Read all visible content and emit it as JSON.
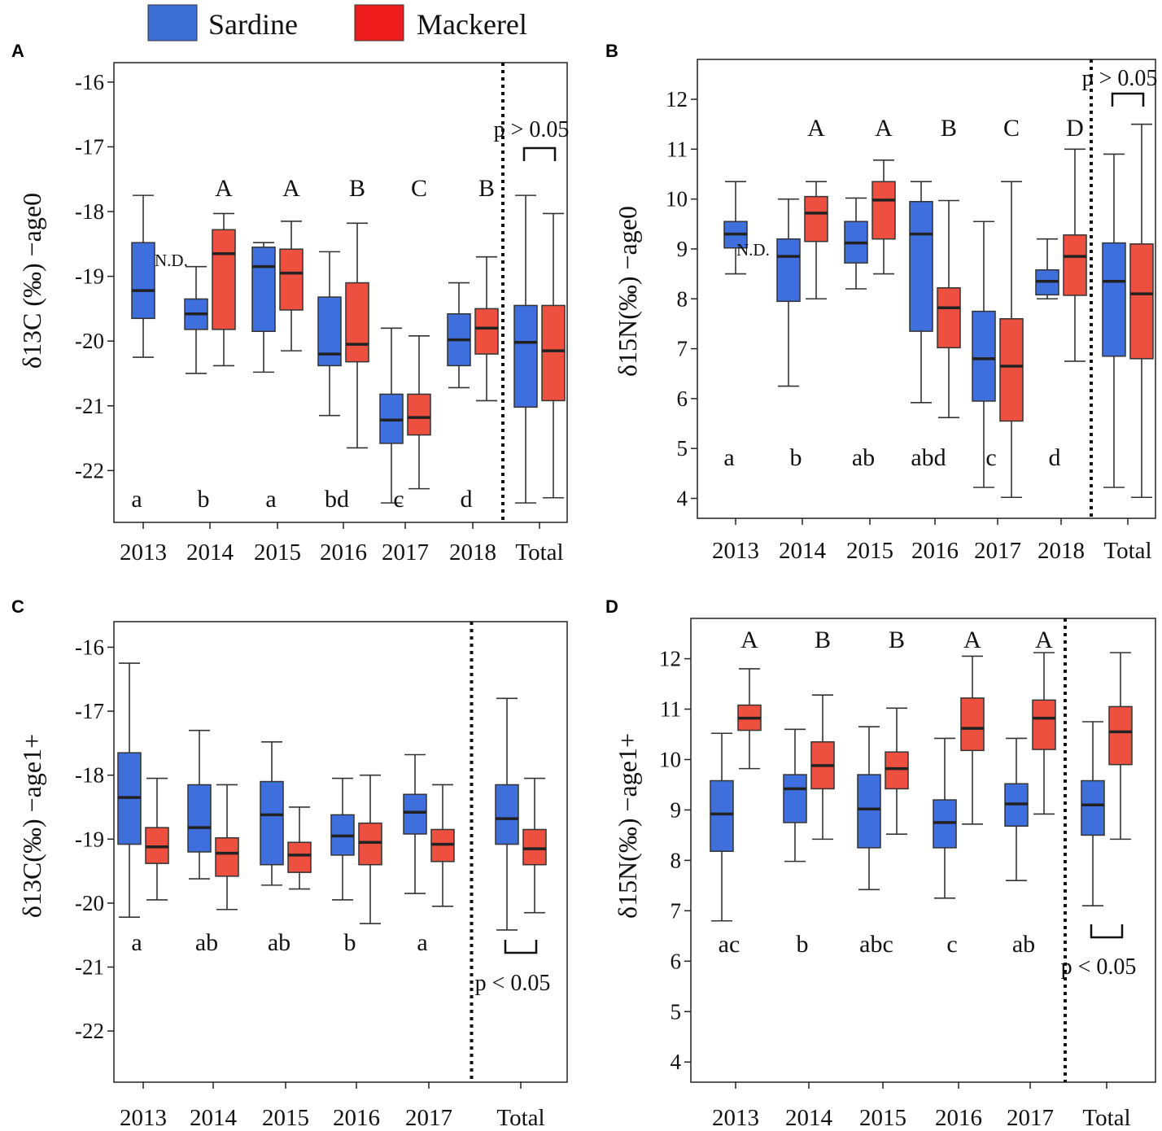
{
  "legend": [
    {
      "label": "Sardine",
      "color": "#3d6fd6"
    },
    {
      "label": "Mackerel",
      "color": "#ee1c1c"
    }
  ],
  "colors": {
    "sardine": "#3f6fdc",
    "mackerel": "#ee5040"
  },
  "chart_data": [
    {
      "type": "box",
      "panel": "A",
      "ylabel": "δ13C (‰) −age0",
      "ylim": [
        -22.8,
        -15.7
      ],
      "yticks": [
        -16,
        -17,
        -18,
        -19,
        -20,
        -21,
        -22
      ],
      "categories": [
        "2013",
        "2014",
        "2015",
        "2016",
        "2017",
        "2018",
        "Total"
      ],
      "divider_after": 6,
      "sardine": [
        {
          "cat": 0,
          "min": -20.25,
          "q1": -19.65,
          "median": -19.22,
          "q3": -18.48,
          "max": -17.75
        },
        {
          "cat": 1,
          "min": -20.5,
          "q1": -19.82,
          "median": -19.58,
          "q3": -19.35,
          "max": -18.85
        },
        {
          "cat": 2,
          "min": -20.48,
          "q1": -19.85,
          "median": -18.85,
          "q3": -18.55,
          "max": -18.48
        },
        {
          "cat": 3,
          "min": -21.15,
          "q1": -20.38,
          "median": -20.2,
          "q3": -19.32,
          "max": -18.62
        },
        {
          "cat": 4,
          "min": -22.5,
          "q1": -21.58,
          "median": -21.22,
          "q3": -20.82,
          "max": -19.8
        },
        {
          "cat": 5,
          "min": -20.72,
          "q1": -20.38,
          "median": -19.98,
          "q3": -19.58,
          "max": -19.1
        },
        {
          "cat": 6,
          "min": -22.5,
          "q1": -21.02,
          "median": -20.02,
          "q3": -19.45,
          "max": -17.75
        }
      ],
      "mackerel": [
        {
          "cat": 1,
          "min": -20.38,
          "q1": -19.82,
          "median": -18.65,
          "q3": -18.28,
          "max": -18.03
        },
        {
          "cat": 2,
          "min": -20.15,
          "q1": -19.52,
          "median": -18.95,
          "q3": -18.58,
          "max": -18.15
        },
        {
          "cat": 3,
          "min": -21.65,
          "q1": -20.32,
          "median": -20.05,
          "q3": -19.1,
          "max": -18.18
        },
        {
          "cat": 4,
          "min": -22.28,
          "q1": -21.45,
          "median": -21.18,
          "q3": -20.82,
          "max": -19.92
        },
        {
          "cat": 5,
          "min": -20.92,
          "q1": -20.2,
          "median": -19.8,
          "q3": -19.5,
          "max": -18.7
        },
        {
          "cat": 6,
          "min": -22.42,
          "q1": -20.92,
          "median": -20.15,
          "q3": -19.45,
          "max": -18.03
        }
      ],
      "upper_letters": [
        {
          "cat": 1,
          "text": "A"
        },
        {
          "cat": 2,
          "text": "A"
        },
        {
          "cat": 3,
          "text": "B"
        },
        {
          "cat": 4,
          "text": "C"
        },
        {
          "cat": 5,
          "text": "B"
        }
      ],
      "lower_letters": [
        {
          "cat": 0,
          "text": "a"
        },
        {
          "cat": 1,
          "text": "b"
        },
        {
          "cat": 2,
          "text": "a"
        },
        {
          "cat": 3,
          "text": "bd"
        },
        {
          "cat": 4,
          "text": "c"
        },
        {
          "cat": 5,
          "text": "d"
        }
      ],
      "nd_label": "N.D.",
      "nd_cat": 0,
      "pvalue": "p > 0.05",
      "pvalue_position": "top"
    },
    {
      "type": "box",
      "panel": "B",
      "ylabel": "δ15N(‰) −age0",
      "ylim": [
        3.6,
        12.8
      ],
      "yticks": [
        12,
        11,
        10,
        9,
        8,
        7,
        6,
        5,
        4
      ],
      "categories": [
        "2013",
        "2014",
        "2015",
        "2016",
        "2017",
        "2018",
        "Total"
      ],
      "divider_after": 6,
      "sardine": [
        {
          "cat": 0,
          "min": 8.5,
          "q1": 9.02,
          "median": 9.3,
          "q3": 9.55,
          "max": 10.35
        },
        {
          "cat": 1,
          "min": 6.25,
          "q1": 7.95,
          "median": 8.85,
          "q3": 9.2,
          "max": 10.0
        },
        {
          "cat": 2,
          "min": 8.2,
          "q1": 8.72,
          "median": 9.12,
          "q3": 9.55,
          "max": 10.02
        },
        {
          "cat": 3,
          "min": 5.92,
          "q1": 7.35,
          "median": 9.3,
          "q3": 9.95,
          "max": 10.35
        },
        {
          "cat": 4,
          "min": 4.22,
          "q1": 5.95,
          "median": 6.8,
          "q3": 7.75,
          "max": 9.55
        },
        {
          "cat": 5,
          "min": 8.0,
          "q1": 8.08,
          "median": 8.35,
          "q3": 8.58,
          "max": 9.2
        },
        {
          "cat": 6,
          "min": 4.22,
          "q1": 6.85,
          "median": 8.35,
          "q3": 9.12,
          "max": 10.9
        }
      ],
      "mackerel": [
        {
          "cat": 1,
          "min": 8.0,
          "q1": 9.15,
          "median": 9.72,
          "q3": 10.05,
          "max": 10.35
        },
        {
          "cat": 2,
          "min": 8.5,
          "q1": 9.2,
          "median": 9.98,
          "q3": 10.35,
          "max": 10.78
        },
        {
          "cat": 3,
          "min": 5.62,
          "q1": 7.02,
          "median": 7.82,
          "q3": 8.22,
          "max": 9.97
        },
        {
          "cat": 4,
          "min": 4.02,
          "q1": 5.55,
          "median": 6.65,
          "q3": 7.6,
          "max": 10.35
        },
        {
          "cat": 5,
          "min": 6.75,
          "q1": 8.07,
          "median": 8.85,
          "q3": 9.28,
          "max": 11.0
        },
        {
          "cat": 6,
          "min": 4.02,
          "q1": 6.8,
          "median": 8.1,
          "q3": 9.1,
          "max": 11.5
        }
      ],
      "upper_letters": [
        {
          "cat": 1,
          "text": "A"
        },
        {
          "cat": 2,
          "text": "A"
        },
        {
          "cat": 3,
          "text": "B"
        },
        {
          "cat": 4,
          "text": "C"
        },
        {
          "cat": 5,
          "text": "D"
        }
      ],
      "lower_letters": [
        {
          "cat": 0,
          "text": "a"
        },
        {
          "cat": 1,
          "text": "b"
        },
        {
          "cat": 2,
          "text": "ab"
        },
        {
          "cat": 3,
          "text": "abd"
        },
        {
          "cat": 4,
          "text": "c"
        },
        {
          "cat": 5,
          "text": "d"
        }
      ],
      "nd_label": "N.D.",
      "nd_cat": 0,
      "pvalue": "p > 0.05",
      "pvalue_position": "top"
    },
    {
      "type": "box",
      "panel": "C",
      "ylabel": "δ13C(‰) −age1+",
      "ylim": [
        -22.8,
        -15.6
      ],
      "yticks": [
        -16,
        -17,
        -18,
        -19,
        -20,
        -21,
        -22
      ],
      "categories": [
        "2013",
        "2014",
        "2015",
        "2016",
        "2017",
        "Total"
      ],
      "divider_after": 5,
      "sardine": [
        {
          "cat": 0,
          "min": -20.22,
          "q1": -19.08,
          "median": -18.35,
          "q3": -17.65,
          "max": -16.25
        },
        {
          "cat": 1,
          "min": -19.62,
          "q1": -19.2,
          "median": -18.82,
          "q3": -18.15,
          "max": -17.3
        },
        {
          "cat": 2,
          "min": -19.72,
          "q1": -19.4,
          "median": -18.62,
          "q3": -18.1,
          "max": -17.48
        },
        {
          "cat": 3,
          "min": -19.95,
          "q1": -19.25,
          "median": -18.95,
          "q3": -18.62,
          "max": -18.05
        },
        {
          "cat": 4,
          "min": -19.85,
          "q1": -18.92,
          "median": -18.58,
          "q3": -18.3,
          "max": -17.68
        },
        {
          "cat": 5,
          "min": -20.42,
          "q1": -19.08,
          "median": -18.68,
          "q3": -18.15,
          "max": -16.8
        }
      ],
      "mackerel": [
        {
          "cat": 0,
          "min": -19.95,
          "q1": -19.38,
          "median": -19.12,
          "q3": -18.82,
          "max": -18.05
        },
        {
          "cat": 1,
          "min": -20.1,
          "q1": -19.58,
          "median": -19.22,
          "q3": -18.98,
          "max": -18.15
        },
        {
          "cat": 2,
          "min": -19.78,
          "q1": -19.52,
          "median": -19.25,
          "q3": -19.05,
          "max": -18.5
        },
        {
          "cat": 3,
          "min": -20.32,
          "q1": -19.4,
          "median": -19.05,
          "q3": -18.75,
          "max": -18.0
        },
        {
          "cat": 4,
          "min": -20.05,
          "q1": -19.35,
          "median": -19.08,
          "q3": -18.85,
          "max": -18.15
        },
        {
          "cat": 5,
          "min": -20.15,
          "q1": -19.4,
          "median": -19.15,
          "q3": -18.85,
          "max": -18.05
        }
      ],
      "upper_letters": [],
      "lower_letters": [
        {
          "cat": 0,
          "text": "a"
        },
        {
          "cat": 1,
          "text": "ab"
        },
        {
          "cat": 2,
          "text": "ab"
        },
        {
          "cat": 3,
          "text": "b"
        },
        {
          "cat": 4,
          "text": "a"
        }
      ],
      "pvalue": "p < 0.05",
      "pvalue_position": "bottom"
    },
    {
      "type": "box",
      "panel": "D",
      "ylabel": "δ15N(‰) −age1+",
      "ylim": [
        3.6,
        12.8
      ],
      "yticks": [
        12,
        11,
        10,
        9,
        8,
        7,
        6,
        5,
        4
      ],
      "categories": [
        "2013",
        "2014",
        "2015",
        "2016",
        "2017",
        "Total"
      ],
      "divider_after": 5,
      "sardine": [
        {
          "cat": 0,
          "min": 6.8,
          "q1": 8.18,
          "median": 8.92,
          "q3": 9.58,
          "max": 10.52
        },
        {
          "cat": 1,
          "min": 7.98,
          "q1": 8.75,
          "median": 9.42,
          "q3": 9.7,
          "max": 10.6
        },
        {
          "cat": 2,
          "min": 7.42,
          "q1": 8.25,
          "median": 9.02,
          "q3": 9.7,
          "max": 10.65
        },
        {
          "cat": 3,
          "min": 7.25,
          "q1": 8.25,
          "median": 8.75,
          "q3": 9.2,
          "max": 10.42
        },
        {
          "cat": 4,
          "min": 7.6,
          "q1": 8.68,
          "median": 9.12,
          "q3": 9.52,
          "max": 10.42
        },
        {
          "cat": 5,
          "min": 7.1,
          "q1": 8.5,
          "median": 9.1,
          "q3": 9.58,
          "max": 10.75
        }
      ],
      "mackerel": [
        {
          "cat": 0,
          "min": 9.82,
          "q1": 10.58,
          "median": 10.82,
          "q3": 11.08,
          "max": 11.8
        },
        {
          "cat": 1,
          "min": 8.42,
          "q1": 9.42,
          "median": 9.88,
          "q3": 10.35,
          "max": 11.28
        },
        {
          "cat": 2,
          "min": 8.52,
          "q1": 9.42,
          "median": 9.82,
          "q3": 10.15,
          "max": 11.02
        },
        {
          "cat": 3,
          "min": 8.72,
          "q1": 10.18,
          "median": 10.62,
          "q3": 11.22,
          "max": 12.05
        },
        {
          "cat": 4,
          "min": 8.92,
          "q1": 10.2,
          "median": 10.82,
          "q3": 11.18,
          "max": 12.12
        },
        {
          "cat": 5,
          "min": 8.42,
          "q1": 9.9,
          "median": 10.55,
          "q3": 11.05,
          "max": 12.12
        }
      ],
      "upper_letters": [
        {
          "cat": 0,
          "text": "A"
        },
        {
          "cat": 1,
          "text": "B"
        },
        {
          "cat": 2,
          "text": "B"
        },
        {
          "cat": 3,
          "text": "A"
        },
        {
          "cat": 4,
          "text": "A"
        }
      ],
      "lower_letters": [
        {
          "cat": 0,
          "text": "ac"
        },
        {
          "cat": 1,
          "text": "b"
        },
        {
          "cat": 2,
          "text": "abc"
        },
        {
          "cat": 3,
          "text": "c"
        },
        {
          "cat": 4,
          "text": "ab"
        }
      ],
      "pvalue": "p < 0.05",
      "pvalue_position": "bottom"
    }
  ]
}
